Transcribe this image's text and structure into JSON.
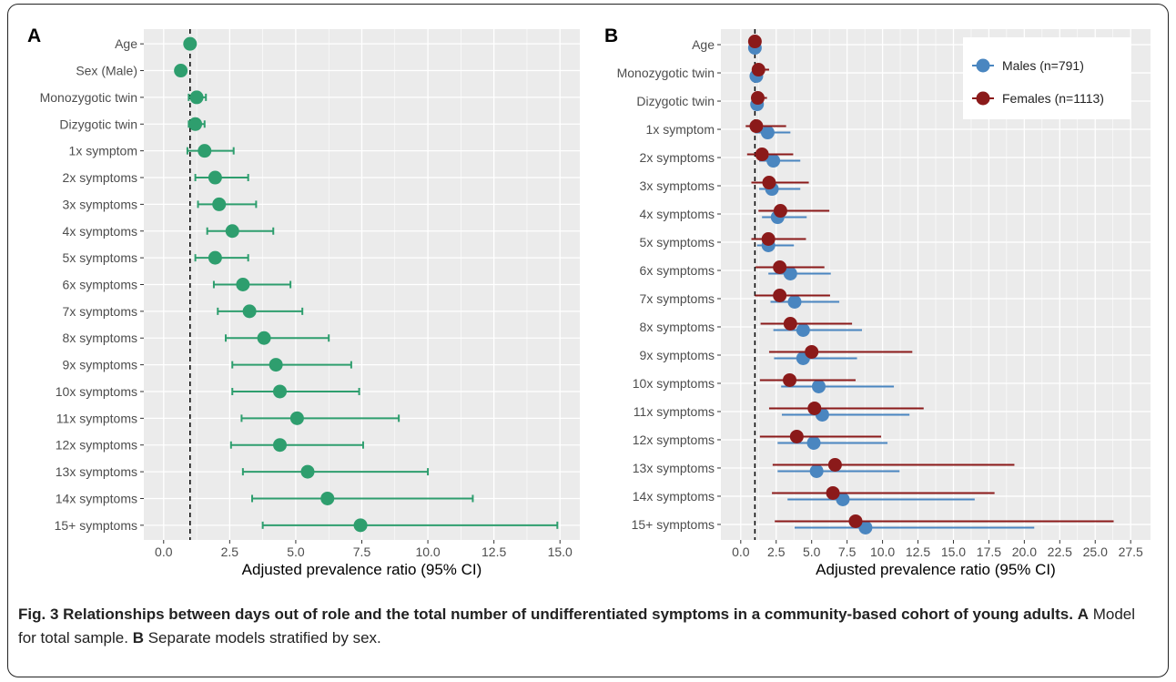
{
  "caption": {
    "bold": "Fig. 3 Relationships between days out of role and the total number of undifferentiated symptoms in a community-based cohort of young adults.",
    "part_a_letter": "A",
    "part_a_text": "Model for total sample.",
    "part_b_letter": "B",
    "part_b_text": "Separate models stratified by sex."
  },
  "colors": {
    "total": "#2e9e6e",
    "males": "#4a86c0",
    "females": "#8b1a1a",
    "panel_bg": "#ebebeb",
    "grid": "#ffffff"
  },
  "chart_data": [
    {
      "type": "scatter",
      "panel": "A",
      "xlabel": "Adjusted prevalence ratio (95% CI)",
      "xlim": [
        -0.75,
        15.75
      ],
      "xticks": [
        0.0,
        2.5,
        5.0,
        7.5,
        10.0,
        12.5,
        15.0
      ],
      "xtick_labels": [
        "0.0",
        "2.5",
        "5.0",
        "7.5",
        "10.0",
        "12.5",
        "15.0"
      ],
      "reference_line": 1,
      "categories": [
        "Age",
        "Sex (Male)",
        "Monozygotic twin",
        "Dizygotic twin",
        "1x symptom",
        "2x symptoms",
        "3x symptoms",
        "4x symptoms",
        "5x symptoms",
        "6x symptoms",
        "7x symptoms",
        "8x symptoms",
        "9x symptoms",
        "10x symptoms",
        "11x symptoms",
        "12x symptoms",
        "13x symptoms",
        "14x symptoms",
        "15+ symptoms"
      ],
      "series": [
        {
          "estimate": [
            1.0,
            0.65,
            1.25,
            1.2,
            1.55,
            1.95,
            2.1,
            2.6,
            1.95,
            3.0,
            3.25,
            3.8,
            4.25,
            4.4,
            5.05,
            4.4,
            5.45,
            6.2,
            7.45
          ],
          "lower": [
            0.95,
            0.6,
            0.95,
            0.95,
            0.9,
            1.2,
            1.3,
            1.65,
            1.2,
            1.9,
            2.05,
            2.35,
            2.6,
            2.6,
            2.95,
            2.55,
            3.0,
            3.35,
            3.75
          ],
          "upper": [
            1.05,
            0.7,
            1.6,
            1.55,
            2.65,
            3.2,
            3.5,
            4.15,
            3.2,
            4.8,
            5.25,
            6.25,
            7.1,
            7.4,
            8.9,
            7.55,
            10.0,
            11.7,
            14.9
          ]
        }
      ]
    },
    {
      "type": "scatter",
      "panel": "B",
      "xlabel": "Adjusted prevalence ratio (95% CI)",
      "xlim": [
        -1.4,
        28.9
      ],
      "xticks": [
        0.0,
        2.5,
        5.0,
        7.5,
        10.0,
        12.5,
        15.0,
        17.5,
        20.0,
        22.5,
        25.0,
        27.5
      ],
      "xtick_labels": [
        "0.0",
        "2.5",
        "5.0",
        "7.5",
        "10.0",
        "12.5",
        "15.0",
        "17.5",
        "20.0",
        "22.5",
        "25.0",
        "27.5"
      ],
      "reference_line": 1,
      "categories": [
        "Age",
        "Monozygotic twin",
        "Dizygotic twin",
        "1x symptom",
        "2x symptoms",
        "3x symptoms",
        "4x symptoms",
        "5x symptoms",
        "6x symptoms",
        "7x symptoms",
        "8x symptoms",
        "9x symptoms",
        "10x symptoms",
        "11x symptoms",
        "12x symptoms",
        "13x symptoms",
        "14x symptoms",
        "15+ symptoms"
      ],
      "legend_position": "top-right",
      "series": [
        {
          "name": "Males (n=791)",
          "estimate": [
            1.0,
            1.1,
            1.15,
            1.9,
            2.3,
            2.2,
            2.6,
            1.95,
            3.5,
            3.8,
            4.4,
            4.4,
            5.5,
            5.75,
            5.15,
            5.35,
            7.2,
            8.8
          ],
          "lower": [
            0.95,
            0.9,
            0.95,
            1.0,
            1.3,
            1.3,
            1.5,
            1.15,
            1.95,
            2.1,
            2.3,
            2.35,
            2.85,
            2.9,
            2.6,
            2.6,
            3.3,
            3.8
          ],
          "upper": [
            1.05,
            1.35,
            1.4,
            3.5,
            4.2,
            4.2,
            4.65,
            3.75,
            6.35,
            6.95,
            8.55,
            8.2,
            10.8,
            11.9,
            10.35,
            11.2,
            16.5,
            20.7
          ]
        },
        {
          "name": "Females (n=1113)",
          "estimate": [
            1.0,
            1.25,
            1.2,
            1.1,
            1.5,
            2.0,
            2.8,
            1.95,
            2.75,
            2.75,
            3.5,
            5.0,
            3.45,
            5.2,
            3.95,
            6.65,
            6.5,
            8.1
          ],
          "lower": [
            0.9,
            0.85,
            0.85,
            0.35,
            0.45,
            0.75,
            1.25,
            0.75,
            1.05,
            1.0,
            1.4,
            2.0,
            1.35,
            2.0,
            1.35,
            2.25,
            2.2,
            2.4
          ],
          "upper": [
            1.1,
            2.0,
            1.85,
            3.2,
            3.7,
            4.8,
            6.25,
            4.6,
            5.9,
            6.3,
            7.85,
            12.1,
            8.1,
            12.9,
            9.9,
            19.3,
            17.9,
            26.3
          ]
        }
      ]
    }
  ]
}
